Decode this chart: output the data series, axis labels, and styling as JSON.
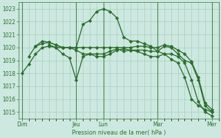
{
  "bg_color": "#cce8e0",
  "grid_color": "#aaccbb",
  "line_color": "#2d6e2d",
  "xlabel": "Pression niveau de la mer( hPa )",
  "ylim": [
    1014.5,
    1023.5
  ],
  "yticks": [
    1015,
    1016,
    1017,
    1018,
    1019,
    1020,
    1021,
    1022,
    1023
  ],
  "x_day_labels": [
    "Dim",
    "Jeu",
    "Lun",
    "Mar",
    "Mer"
  ],
  "x_day_positions": [
    0,
    48,
    72,
    120,
    168
  ],
  "total_hours": 174,
  "xlim": [
    -3,
    174
  ],
  "series": [
    {
      "x": [
        0,
        6,
        12,
        18,
        24,
        30,
        36,
        42,
        48,
        54,
        60,
        66,
        72,
        78,
        84,
        90,
        96,
        102,
        108,
        114,
        120,
        126,
        132,
        138,
        144,
        150,
        156,
        162,
        168
      ],
      "y": [
        1018.0,
        1018.7,
        1019.5,
        1020.0,
        1020.1,
        1020.0,
        1020.0,
        1020.0,
        1020.0,
        1021.8,
        1022.1,
        1022.8,
        1023.0,
        1022.8,
        1022.3,
        1020.8,
        1020.5,
        1020.5,
        1020.3,
        1020.1,
        1019.7,
        1019.5,
        1019.1,
        1018.8,
        1017.7,
        1016.0,
        1015.5,
        1015.2,
        1015.0
      ],
      "lw": 1.0
    },
    {
      "x": [
        12,
        18,
        24,
        30,
        36,
        42,
        48,
        54,
        60,
        66,
        72,
        78,
        84,
        90,
        96,
        102,
        108,
        114,
        120,
        126,
        132,
        138,
        144,
        150,
        156,
        162,
        168
      ],
      "y": [
        1020.1,
        1020.3,
        1020.4,
        1020.2,
        1020.0,
        1020.0,
        1020.0,
        1020.0,
        1020.0,
        1020.0,
        1020.0,
        1020.0,
        1020.0,
        1020.0,
        1020.0,
        1020.1,
        1020.1,
        1020.0,
        1020.0,
        1020.2,
        1020.1,
        1019.8,
        1019.5,
        1018.9,
        1017.7,
        1015.7,
        1015.2
      ],
      "lw": 1.0
    },
    {
      "x": [
        24,
        30,
        36,
        42,
        48,
        54,
        60,
        66,
        72,
        78,
        84,
        90,
        96,
        102,
        108,
        114,
        120,
        126,
        132,
        138,
        144,
        150,
        156,
        162,
        168
      ],
      "y": [
        1020.2,
        1020.0,
        1019.5,
        1019.2,
        1017.5,
        1019.3,
        1019.5,
        1019.3,
        1019.3,
        1019.5,
        1019.8,
        1019.9,
        1019.8,
        1019.7,
        1019.5,
        1019.3,
        1019.3,
        1019.5,
        1019.5,
        1019.3,
        1018.8,
        1017.5,
        1015.8,
        1015.0,
        1014.7
      ],
      "lw": 1.0
    },
    {
      "x": [
        6,
        12,
        18,
        24,
        30,
        36,
        42,
        48,
        54,
        60,
        66,
        72,
        78,
        84,
        90,
        96,
        102,
        108,
        114,
        120,
        126,
        132,
        138,
        144,
        150,
        156,
        162,
        168
      ],
      "y": [
        1019.3,
        1020.1,
        1020.5,
        1020.4,
        1020.2,
        1020.0,
        1020.0,
        1019.8,
        1019.5,
        1019.5,
        1019.5,
        1019.5,
        1019.7,
        1019.9,
        1019.7,
        1019.8,
        1019.8,
        1019.8,
        1019.7,
        1019.7,
        1020.1,
        1020.0,
        1019.5,
        1019.0,
        1018.8,
        1017.5,
        1015.5,
        1015.0
      ],
      "lw": 1.0
    }
  ],
  "vlines": [
    0,
    48,
    72,
    120,
    168
  ]
}
